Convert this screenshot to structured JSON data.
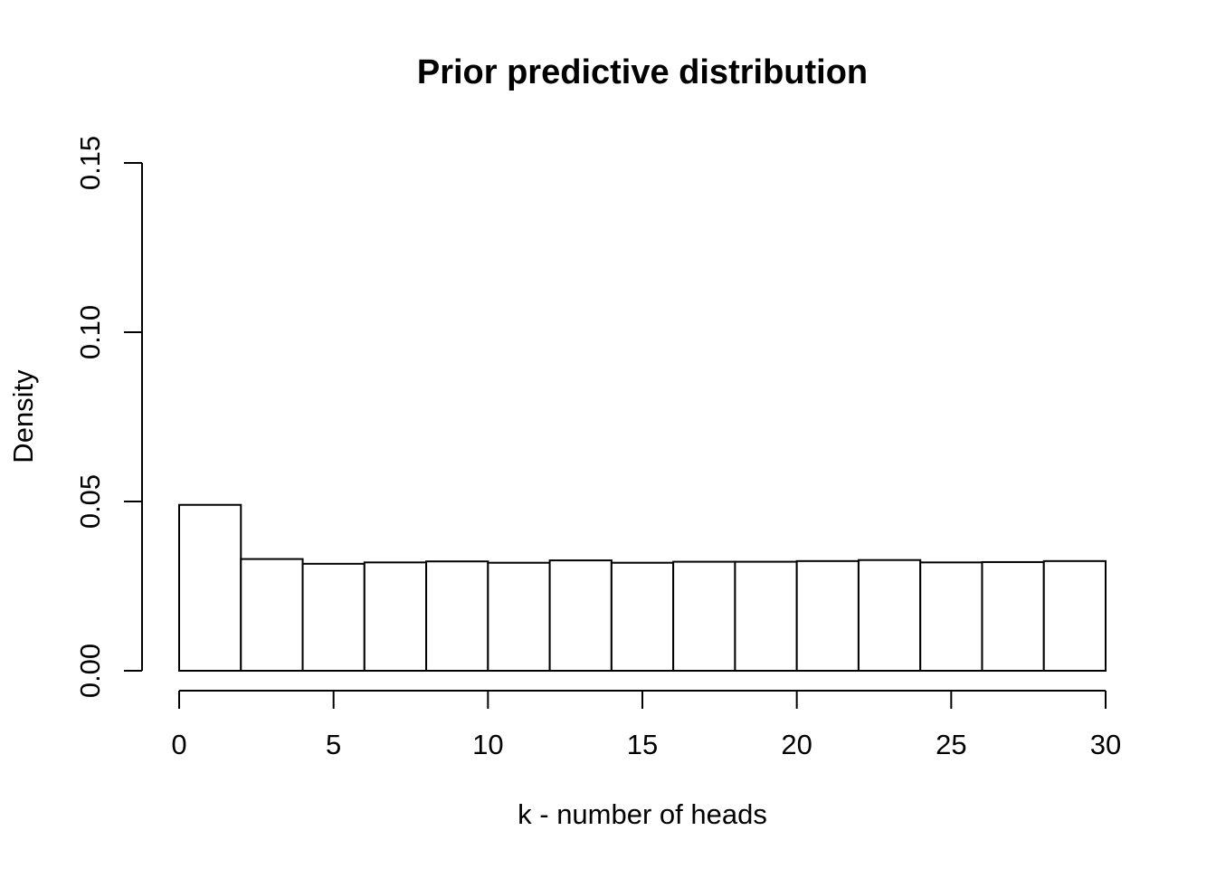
{
  "chart_data": {
    "type": "bar",
    "title": "Prior predictive distribution",
    "xlabel": "k - number of heads",
    "ylabel": "Density",
    "xlim": [
      0,
      30
    ],
    "ylim": [
      0,
      0.15
    ],
    "x_ticks": [
      "0",
      "5",
      "10",
      "15",
      "20",
      "25",
      "30"
    ],
    "y_ticks": [
      "0.00",
      "0.05",
      "0.10",
      "0.15"
    ],
    "bins": [
      {
        "x0": 0,
        "x1": 2,
        "density": 0.049
      },
      {
        "x0": 2,
        "x1": 4,
        "density": 0.033
      },
      {
        "x0": 4,
        "x1": 6,
        "density": 0.0316
      },
      {
        "x0": 6,
        "x1": 8,
        "density": 0.032
      },
      {
        "x0": 8,
        "x1": 10,
        "density": 0.0323
      },
      {
        "x0": 10,
        "x1": 12,
        "density": 0.0319
      },
      {
        "x0": 12,
        "x1": 14,
        "density": 0.0326
      },
      {
        "x0": 14,
        "x1": 16,
        "density": 0.0319
      },
      {
        "x0": 16,
        "x1": 18,
        "density": 0.0322
      },
      {
        "x0": 18,
        "x1": 20,
        "density": 0.0322
      },
      {
        "x0": 20,
        "x1": 22,
        "density": 0.0324
      },
      {
        "x0": 22,
        "x1": 24,
        "density": 0.0327
      },
      {
        "x0": 24,
        "x1": 26,
        "density": 0.032
      },
      {
        "x0": 26,
        "x1": 28,
        "density": 0.0321
      },
      {
        "x0": 28,
        "x1": 30,
        "density": 0.0324
      }
    ],
    "grid": false,
    "legend": "none"
  }
}
